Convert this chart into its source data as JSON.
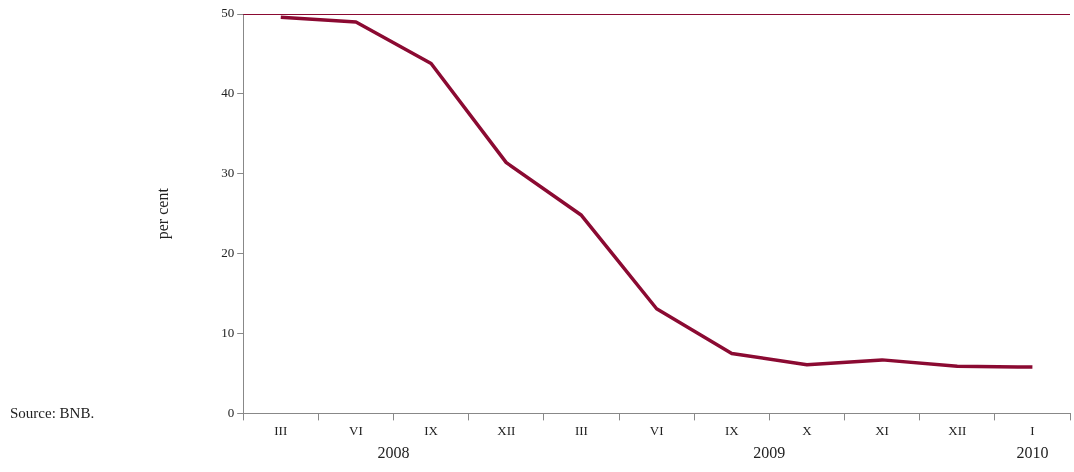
{
  "chart_data": {
    "type": "line",
    "ylabel": "per cent",
    "categories": [
      "III",
      "VI",
      "IX",
      "XII",
      "III",
      "VI",
      "IX",
      "X",
      "XI",
      "XII",
      "I"
    ],
    "series": [
      {
        "color": "#8b0a32",
        "values": [
          49.6,
          49.0,
          43.8,
          31.4,
          24.8,
          13.1,
          7.5,
          6.1,
          6.7,
          5.9,
          5.8
        ]
      }
    ],
    "ylim": [
      0,
      50
    ],
    "yticks": [
      0,
      10,
      20,
      30,
      40,
      50
    ],
    "grid": false,
    "legend": false,
    "marker": "none",
    "line_style": "solid",
    "annotations": [
      "2008",
      "2009",
      "2010",
      "Source: BNB."
    ]
  }
}
